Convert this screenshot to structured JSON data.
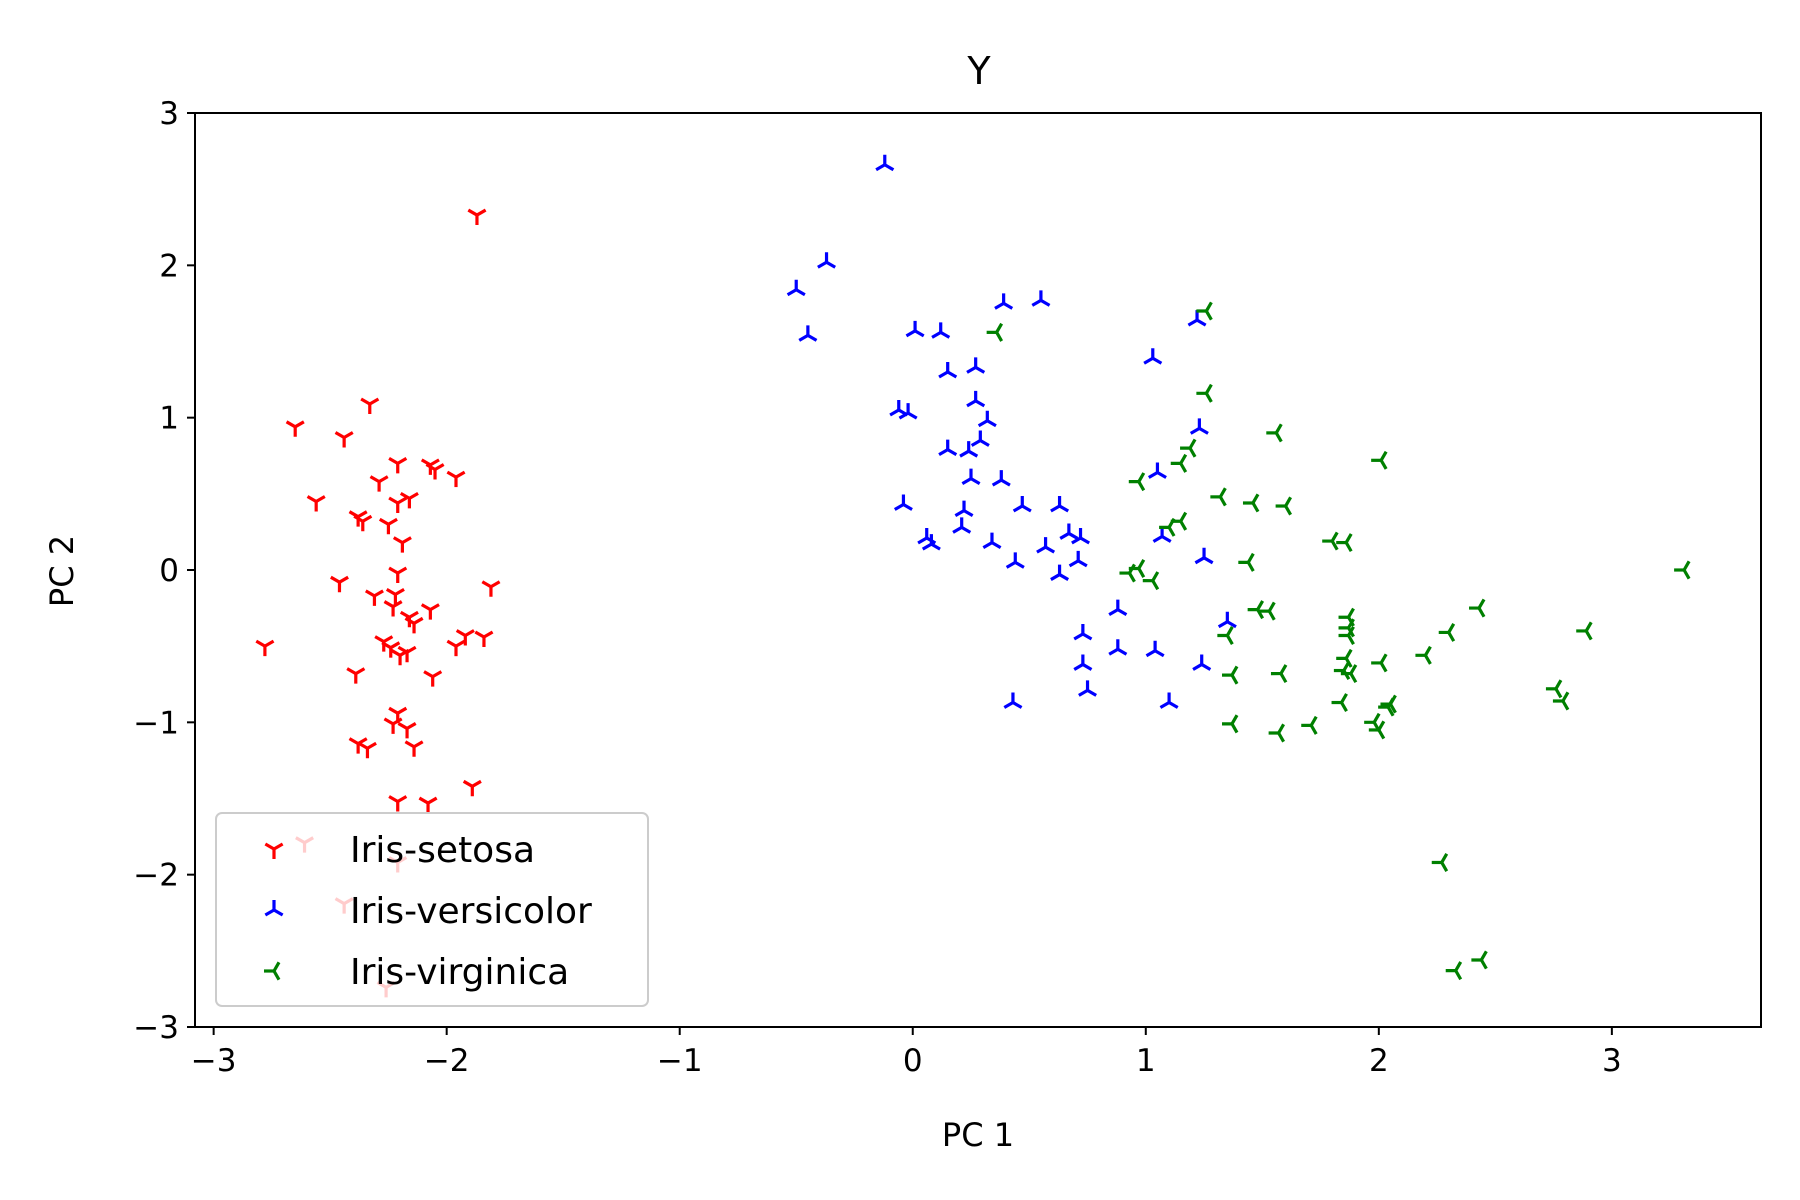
{
  "chart_data": {
    "type": "scatter",
    "title": "Y",
    "xlabel": "PC 1",
    "ylabel": "PC 2",
    "xlim": [
      -3.08,
      3.64
    ],
    "ylim": [
      -3.0,
      3.0
    ],
    "xticks": [
      -3,
      -2,
      -1,
      0,
      1,
      2,
      3
    ],
    "xtick_labels": [
      "−3",
      "−2",
      "−1",
      "0",
      "1",
      "2",
      "3"
    ],
    "yticks": [
      -3,
      -2,
      -1,
      0,
      1,
      2,
      3
    ],
    "ytick_labels": [
      "−3",
      "−2",
      "−1",
      "0",
      "1",
      "2",
      "3"
    ],
    "grid": false,
    "legend_position": "lower left",
    "series": [
      {
        "name": "Iris-setosa",
        "color": "#ff0000",
        "marker": "tri-down",
        "points": [
          [
            -1.87,
            2.33
          ],
          [
            -2.65,
            0.94
          ],
          [
            -2.44,
            0.87
          ],
          [
            -2.33,
            1.09
          ],
          [
            -2.21,
            0.7
          ],
          [
            -2.07,
            0.69
          ],
          [
            -2.05,
            0.66
          ],
          [
            -1.96,
            0.61
          ],
          [
            -2.29,
            0.58
          ],
          [
            -2.16,
            0.47
          ],
          [
            -2.21,
            0.44
          ],
          [
            -2.56,
            0.45
          ],
          [
            -2.38,
            0.35
          ],
          [
            -2.36,
            0.32
          ],
          [
            -2.25,
            0.3
          ],
          [
            -2.19,
            0.18
          ],
          [
            -2.21,
            -0.02
          ],
          [
            -2.46,
            -0.08
          ],
          [
            -2.31,
            -0.17
          ],
          [
            -2.22,
            -0.16
          ],
          [
            -2.23,
            -0.24
          ],
          [
            -1.81,
            -0.11
          ],
          [
            -2.07,
            -0.26
          ],
          [
            -2.16,
            -0.31
          ],
          [
            -2.14,
            -0.35
          ],
          [
            -1.92,
            -0.43
          ],
          [
            -1.84,
            -0.44
          ],
          [
            -2.27,
            -0.47
          ],
          [
            -2.24,
            -0.51
          ],
          [
            -2.17,
            -0.54
          ],
          [
            -1.96,
            -0.5
          ],
          [
            -2.78,
            -0.5
          ],
          [
            -2.2,
            -0.56
          ],
          [
            -2.39,
            -0.68
          ],
          [
            -2.06,
            -0.7
          ],
          [
            -2.21,
            -0.94
          ],
          [
            -2.23,
            -1.01
          ],
          [
            -2.17,
            -1.04
          ],
          [
            -2.14,
            -1.16
          ],
          [
            -2.38,
            -1.14
          ],
          [
            -2.34,
            -1.17
          ],
          [
            -2.21,
            -1.52
          ],
          [
            -2.08,
            -1.53
          ],
          [
            -1.89,
            -1.42
          ],
          [
            -2.61,
            -1.79
          ],
          [
            -2.21,
            -1.92
          ],
          [
            -2.44,
            -2.19
          ],
          [
            -2.26,
            -2.74
          ]
        ]
      },
      {
        "name": "Iris-versicolor",
        "color": "#0000ff",
        "marker": "tri-up",
        "points": [
          [
            -0.12,
            2.66
          ],
          [
            -0.37,
            2.02
          ],
          [
            -0.5,
            1.84
          ],
          [
            -0.45,
            1.54
          ],
          [
            0.39,
            1.75
          ],
          [
            0.55,
            1.77
          ],
          [
            0.01,
            1.57
          ],
          [
            0.12,
            1.56
          ],
          [
            1.03,
            1.39
          ],
          [
            0.15,
            1.3
          ],
          [
            0.27,
            1.33
          ],
          [
            1.22,
            1.64
          ],
          [
            -0.06,
            1.05
          ],
          [
            -0.02,
            1.03
          ],
          [
            0.27,
            1.11
          ],
          [
            0.32,
            0.98
          ],
          [
            0.29,
            0.85
          ],
          [
            0.15,
            0.79
          ],
          [
            0.24,
            0.78
          ],
          [
            1.23,
            0.93
          ],
          [
            0.25,
            0.6
          ],
          [
            0.38,
            0.59
          ],
          [
            1.05,
            0.64
          ],
          [
            -0.04,
            0.43
          ],
          [
            0.22,
            0.39
          ],
          [
            0.47,
            0.42
          ],
          [
            0.63,
            0.42
          ],
          [
            0.06,
            0.21
          ],
          [
            0.08,
            0.17
          ],
          [
            0.21,
            0.28
          ],
          [
            0.34,
            0.18
          ],
          [
            0.57,
            0.15
          ],
          [
            0.67,
            0.24
          ],
          [
            0.72,
            0.21
          ],
          [
            1.07,
            0.22
          ],
          [
            1.25,
            0.08
          ],
          [
            0.44,
            0.05
          ],
          [
            0.63,
            -0.03
          ],
          [
            0.71,
            0.06
          ],
          [
            0.88,
            -0.26
          ],
          [
            0.73,
            -0.42
          ],
          [
            0.88,
            -0.52
          ],
          [
            1.04,
            -0.53
          ],
          [
            0.73,
            -0.62
          ],
          [
            0.75,
            -0.79
          ],
          [
            1.24,
            -0.62
          ],
          [
            1.35,
            -0.34
          ],
          [
            0.43,
            -0.87
          ],
          [
            1.1,
            -0.87
          ]
        ]
      },
      {
        "name": "Iris-virginica",
        "color": "#008000",
        "marker": "tri-left",
        "points": [
          [
            1.26,
            1.7
          ],
          [
            0.36,
            1.56
          ],
          [
            1.26,
            1.16
          ],
          [
            1.19,
            0.8
          ],
          [
            1.15,
            0.7
          ],
          [
            0.97,
            0.58
          ],
          [
            1.56,
            0.9
          ],
          [
            2.01,
            0.72
          ],
          [
            1.32,
            0.48
          ],
          [
            1.46,
            0.44
          ],
          [
            1.6,
            0.42
          ],
          [
            1.8,
            0.19
          ],
          [
            1.86,
            0.18
          ],
          [
            1.15,
            0.32
          ],
          [
            1.1,
            0.28
          ],
          [
            0.97,
            0.01
          ],
          [
            0.93,
            -0.02
          ],
          [
            1.03,
            -0.07
          ],
          [
            1.44,
            0.05
          ],
          [
            3.31,
            0.0
          ],
          [
            1.48,
            -0.26
          ],
          [
            1.53,
            -0.27
          ],
          [
            1.35,
            -0.43
          ],
          [
            1.87,
            -0.31
          ],
          [
            1.87,
            -0.38
          ],
          [
            1.87,
            -0.43
          ],
          [
            1.86,
            -0.58
          ],
          [
            1.85,
            -0.66
          ],
          [
            2.01,
            -0.61
          ],
          [
            2.2,
            -0.56
          ],
          [
            2.3,
            -0.41
          ],
          [
            2.43,
            -0.25
          ],
          [
            2.89,
            -0.4
          ],
          [
            1.37,
            -0.69
          ],
          [
            1.58,
            -0.68
          ],
          [
            1.88,
            -0.68
          ],
          [
            1.84,
            -0.87
          ],
          [
            1.98,
            -1.0
          ],
          [
            2.04,
            -0.9
          ],
          [
            2.05,
            -0.88
          ],
          [
            2.76,
            -0.78
          ],
          [
            2.79,
            -0.86
          ],
          [
            1.37,
            -1.01
          ],
          [
            1.57,
            -1.07
          ],
          [
            1.71,
            -1.02
          ],
          [
            2.0,
            -1.05
          ],
          [
            2.27,
            -1.92
          ],
          [
            2.33,
            -2.63
          ],
          [
            2.44,
            -2.56
          ]
        ]
      }
    ]
  }
}
